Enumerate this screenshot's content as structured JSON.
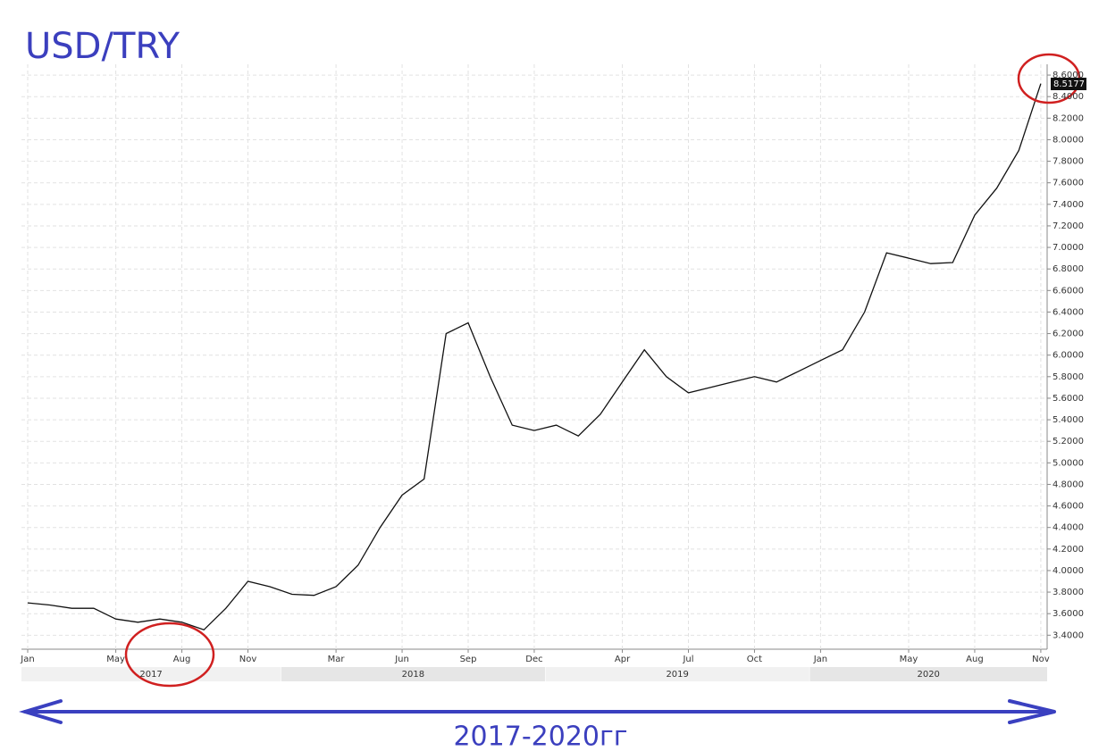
{
  "chart_data": {
    "type": "line",
    "title": "USD/TRY",
    "annotation": "2017-2020гг",
    "x": [
      "2017-01",
      "2017-02",
      "2017-03",
      "2017-04",
      "2017-05",
      "2017-06",
      "2017-07",
      "2017-08",
      "2017-09",
      "2017-10",
      "2017-11",
      "2017-12",
      "2018-01",
      "2018-02",
      "2018-03",
      "2018-04",
      "2018-05",
      "2018-06",
      "2018-07",
      "2018-08",
      "2018-09",
      "2018-10",
      "2018-11",
      "2018-12",
      "2019-01",
      "2019-02",
      "2019-03",
      "2019-04",
      "2019-05",
      "2019-06",
      "2019-07",
      "2019-08",
      "2019-09",
      "2019-10",
      "2019-11",
      "2019-12",
      "2020-01",
      "2020-02",
      "2020-03",
      "2020-04",
      "2020-05",
      "2020-06",
      "2020-07",
      "2020-08",
      "2020-09",
      "2020-10",
      "2020-11"
    ],
    "series": [
      {
        "name": "USD/TRY",
        "color": "#111111",
        "values": [
          3.7,
          3.68,
          3.65,
          3.65,
          3.55,
          3.52,
          3.55,
          3.52,
          3.45,
          3.65,
          3.9,
          3.85,
          3.78,
          3.77,
          3.85,
          4.05,
          4.4,
          4.7,
          4.85,
          6.2,
          6.3,
          5.8,
          5.35,
          5.3,
          5.35,
          5.25,
          5.45,
          5.75,
          6.05,
          5.8,
          5.65,
          5.7,
          5.75,
          5.8,
          5.75,
          5.85,
          5.95,
          6.05,
          6.4,
          6.95,
          6.9,
          6.85,
          6.86,
          7.3,
          7.55,
          7.9,
          8.52
        ]
      }
    ],
    "last_price": 8.5177,
    "ylim": [
      3.27,
      8.7
    ],
    "yticks": [
      {
        "value": 3.4,
        "label": "3.4000"
      },
      {
        "value": 3.6,
        "label": "3.6000"
      },
      {
        "value": 3.8,
        "label": "3.8000"
      },
      {
        "value": 4.0,
        "label": "4.0000"
      },
      {
        "value": 4.2,
        "label": "4.2000"
      },
      {
        "value": 4.4,
        "label": "4.4000"
      },
      {
        "value": 4.6,
        "label": "4.6000"
      },
      {
        "value": 4.8,
        "label": "4.8000"
      },
      {
        "value": 5.0,
        "label": "5.0000"
      },
      {
        "value": 5.2,
        "label": "5.2000"
      },
      {
        "value": 5.4,
        "label": "5.4000"
      },
      {
        "value": 5.6,
        "label": "5.6000"
      },
      {
        "value": 5.8,
        "label": "5.8000"
      },
      {
        "value": 6.0,
        "label": "6.0000"
      },
      {
        "value": 6.2,
        "label": "6.2000"
      },
      {
        "value": 6.4,
        "label": "6.4000"
      },
      {
        "value": 6.6,
        "label": "6.6000"
      },
      {
        "value": 6.8,
        "label": "6.8000"
      },
      {
        "value": 7.0,
        "label": "7.0000"
      },
      {
        "value": 7.2,
        "label": "7.2000"
      },
      {
        "value": 7.4,
        "label": "7.4000"
      },
      {
        "value": 7.6,
        "label": "7.6000"
      },
      {
        "value": 7.8,
        "label": "7.8000"
      },
      {
        "value": 8.0,
        "label": "8.0000"
      },
      {
        "value": 8.2,
        "label": "8.2000"
      },
      {
        "value": 8.4,
        "label": "8.4000"
      },
      {
        "value": 8.6,
        "label": "8.6000"
      }
    ],
    "xticks": [
      {
        "value": "2017-01",
        "label": "Jan"
      },
      {
        "value": "2017-05",
        "label": "May"
      },
      {
        "value": "2017-08",
        "label": "Aug"
      },
      {
        "value": "2017-11",
        "label": "Nov"
      },
      {
        "value": "2018-03",
        "label": "Mar"
      },
      {
        "value": "2018-06",
        "label": "Jun"
      },
      {
        "value": "2018-09",
        "label": "Sep"
      },
      {
        "value": "2018-12",
        "label": "Dec"
      },
      {
        "value": "2019-04",
        "label": "Apr"
      },
      {
        "value": "2019-07",
        "label": "Jul"
      },
      {
        "value": "2019-10",
        "label": "Oct"
      },
      {
        "value": "2020-01",
        "label": "Jan"
      },
      {
        "value": "2020-05",
        "label": "May"
      },
      {
        "value": "2020-08",
        "label": "Aug"
      },
      {
        "value": "2020-11",
        "label": "Nov"
      }
    ],
    "years": [
      "2017",
      "2018",
      "2019",
      "2020"
    ],
    "grid": true
  }
}
